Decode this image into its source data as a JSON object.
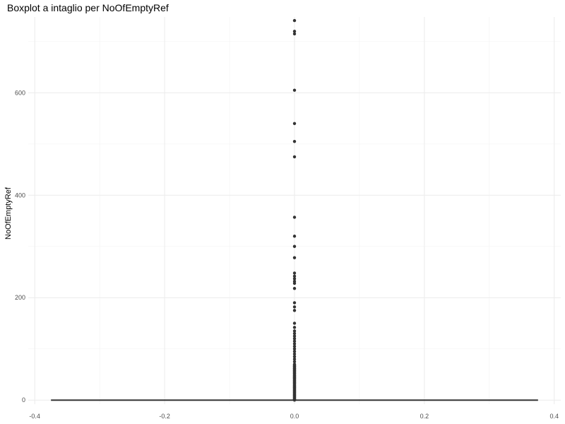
{
  "chart_data": {
    "type": "boxplot",
    "title": "Boxplot a intaglio per NoOfEmptyRef",
    "ylabel": "NoOfEmptyRef",
    "xlabel": "",
    "xlim": [
      -0.41,
      0.41
    ],
    "ylim": [
      -8,
      748
    ],
    "x_ticks": [
      -0.4,
      -0.2,
      0.0,
      0.2,
      0.4
    ],
    "x_tick_labels": [
      "-0.4",
      "-0.2",
      "0.0",
      "0.2",
      "0.4"
    ],
    "y_ticks": [
      0,
      200,
      400,
      600
    ],
    "y_tick_labels": [
      "0",
      "200",
      "400",
      "600"
    ],
    "grid": true,
    "notch": true,
    "box": {
      "x": 0,
      "width": 0.75,
      "min": 0,
      "q1": 0,
      "median": 0,
      "q3": 0,
      "max": 0
    },
    "outliers": [
      741,
      720,
      715,
      605,
      540,
      505,
      475,
      357,
      320,
      300,
      278,
      248,
      242,
      237,
      232,
      228,
      218,
      190,
      182,
      175,
      150,
      142,
      135,
      130,
      125,
      120,
      115,
      110,
      105,
      100,
      95,
      90,
      85,
      80,
      75,
      70,
      66,
      62,
      58,
      55,
      52,
      48,
      45,
      42,
      38,
      35,
      32,
      28,
      25,
      22,
      18,
      15,
      12,
      9,
      6,
      3,
      1
    ],
    "colors": {
      "box": "#333333",
      "points": "#333333"
    }
  }
}
